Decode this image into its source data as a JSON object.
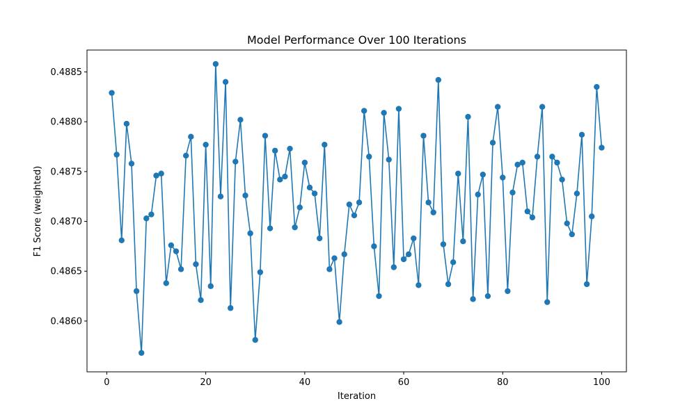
{
  "chart_data": {
    "type": "line",
    "title": "Model Performance Over 100 Iterations",
    "xlabel": "Iteration",
    "ylabel": "F1 Score (weighted)",
    "xlim": [
      -4,
      105
    ],
    "ylim": [
      0.48549,
      0.48872
    ],
    "xticks": [
      0,
      20,
      40,
      60,
      80,
      100
    ],
    "xtick_labels": [
      "0",
      "20",
      "40",
      "60",
      "80",
      "100"
    ],
    "yticks": [
      0.486,
      0.4865,
      0.487,
      0.4875,
      0.488,
      0.4885
    ],
    "ytick_labels": [
      "0.4860",
      "0.4865",
      "0.4870",
      "0.4875",
      "0.4880",
      "0.4885"
    ],
    "grid": false,
    "markers": "circle",
    "color": "#1f77b4",
    "x": [
      1,
      2,
      3,
      4,
      5,
      6,
      7,
      8,
      9,
      10,
      11,
      12,
      13,
      14,
      15,
      16,
      17,
      18,
      19,
      20,
      21,
      22,
      23,
      24,
      25,
      26,
      27,
      28,
      29,
      30,
      31,
      32,
      33,
      34,
      35,
      36,
      37,
      38,
      39,
      40,
      41,
      42,
      43,
      44,
      45,
      46,
      47,
      48,
      49,
      50,
      51,
      52,
      53,
      54,
      55,
      56,
      57,
      58,
      59,
      60,
      61,
      62,
      63,
      64,
      65,
      66,
      67,
      68,
      69,
      70,
      71,
      72,
      73,
      74,
      75,
      76,
      77,
      78,
      79,
      80,
      81,
      82,
      83,
      84,
      85,
      86,
      87,
      88,
      89,
      90,
      91,
      92,
      93,
      94,
      95,
      96,
      97,
      98,
      99,
      100
    ],
    "values": [
      0.48829,
      0.48767,
      0.48681,
      0.48798,
      0.48758,
      0.4863,
      0.48568,
      0.48703,
      0.48707,
      0.48746,
      0.48748,
      0.48638,
      0.48676,
      0.4867,
      0.48652,
      0.48766,
      0.48785,
      0.48657,
      0.48621,
      0.48777,
      0.48635,
      0.48858,
      0.48725,
      0.4884,
      0.48613,
      0.4876,
      0.48802,
      0.48726,
      0.48688,
      0.48581,
      0.48649,
      0.48786,
      0.48693,
      0.48771,
      0.48742,
      0.48745,
      0.48773,
      0.48694,
      0.48714,
      0.48759,
      0.48734,
      0.48728,
      0.48683,
      0.48777,
      0.48652,
      0.48663,
      0.48599,
      0.48667,
      0.48717,
      0.48706,
      0.48719,
      0.48811,
      0.48765,
      0.48675,
      0.48625,
      0.48809,
      0.48762,
      0.48654,
      0.48813,
      0.48662,
      0.48667,
      0.48683,
      0.48636,
      0.48786,
      0.48719,
      0.48709,
      0.48842,
      0.48677,
      0.48637,
      0.48659,
      0.48748,
      0.4868,
      0.48805,
      0.48622,
      0.48727,
      0.48747,
      0.48625,
      0.48779,
      0.48815,
      0.48744,
      0.4863,
      0.48729,
      0.48757,
      0.48759,
      0.4871,
      0.48704,
      0.48765,
      0.48815,
      0.48619,
      0.48765,
      0.48759,
      0.48742,
      0.48698,
      0.48687,
      0.48728,
      0.48787,
      0.48637,
      0.48705,
      0.48835,
      0.48774
    ]
  }
}
